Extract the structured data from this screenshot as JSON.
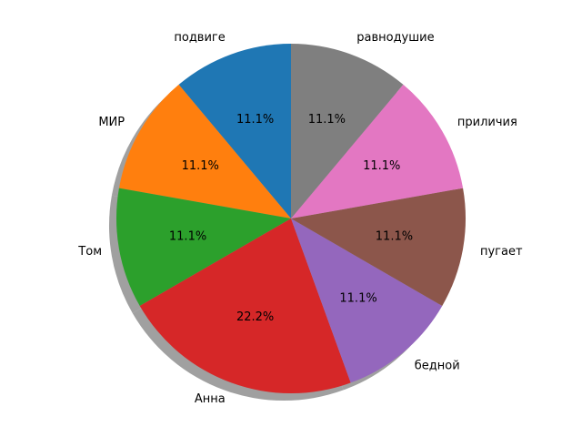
{
  "chart_data": {
    "type": "pie",
    "title": "",
    "start_angle_deg": 90,
    "direction": "counterclockwise",
    "shadow": true,
    "labels": [
      "подвиге",
      "МИР",
      "Том",
      "Анна",
      "бедной",
      "пугает",
      "приличия",
      "равнодушие"
    ],
    "values": [
      1,
      1,
      1,
      2,
      1,
      1,
      1,
      1
    ],
    "percent_labels": [
      "11.1%",
      "11.1%",
      "11.1%",
      "22.2%",
      "11.1%",
      "11.1%",
      "11.1%",
      "11.1%"
    ],
    "colors": [
      "#1f77b4",
      "#ff7f0e",
      "#2ca02c",
      "#d62728",
      "#9467bd",
      "#8c564b",
      "#e377c2",
      "#7f7f7f"
    ],
    "shadow_color": "#808080"
  }
}
